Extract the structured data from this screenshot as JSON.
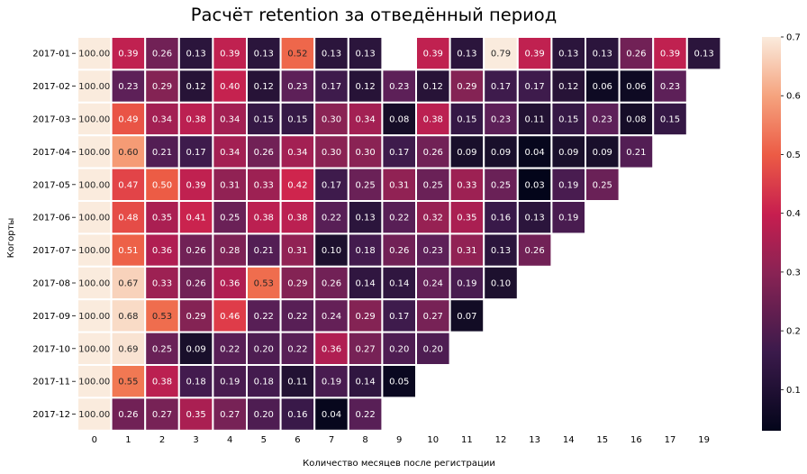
{
  "chart_data": {
    "type": "heatmap",
    "title": "Расчёт retention за отведённый период",
    "xlabel": "Количество месяцев после регистрации",
    "ylabel": "Когорты",
    "x_labels": [
      "0",
      "1",
      "2",
      "3",
      "4",
      "5",
      "6",
      "7",
      "8",
      "9",
      "10",
      "11",
      "12",
      "13",
      "14",
      "15",
      "16",
      "17",
      "19"
    ],
    "y_labels": [
      "2017-01",
      "2017-02",
      "2017-03",
      "2017-04",
      "2017-05",
      "2017-06",
      "2017-07",
      "2017-08",
      "2017-09",
      "2017-10",
      "2017-11",
      "2017-12"
    ],
    "values": [
      [
        100.0,
        0.39,
        0.26,
        0.13,
        0.39,
        0.13,
        0.52,
        0.13,
        0.13,
        null,
        0.39,
        0.13,
        0.79,
        0.39,
        0.13,
        0.13,
        0.26,
        0.39,
        0.13
      ],
      [
        100.0,
        0.23,
        0.29,
        0.12,
        0.4,
        0.12,
        0.23,
        0.17,
        0.12,
        0.23,
        0.12,
        0.29,
        0.17,
        0.17,
        0.12,
        0.06,
        0.06,
        0.23,
        null
      ],
      [
        100.0,
        0.49,
        0.34,
        0.38,
        0.34,
        0.15,
        0.15,
        0.3,
        0.34,
        0.08,
        0.38,
        0.15,
        0.23,
        0.11,
        0.15,
        0.23,
        0.08,
        0.15,
        null
      ],
      [
        100.0,
        0.6,
        0.21,
        0.17,
        0.34,
        0.26,
        0.34,
        0.3,
        0.3,
        0.17,
        0.26,
        0.09,
        0.09,
        0.04,
        0.09,
        0.09,
        0.21,
        null,
        null
      ],
      [
        100.0,
        0.47,
        0.5,
        0.39,
        0.31,
        0.33,
        0.42,
        0.17,
        0.25,
        0.31,
        0.25,
        0.33,
        0.25,
        0.03,
        0.19,
        0.25,
        null,
        null,
        null
      ],
      [
        100.0,
        0.48,
        0.35,
        0.41,
        0.25,
        0.38,
        0.38,
        0.22,
        0.13,
        0.22,
        0.32,
        0.35,
        0.16,
        0.13,
        0.19,
        null,
        null,
        null,
        null
      ],
      [
        100.0,
        0.51,
        0.36,
        0.26,
        0.28,
        0.21,
        0.31,
        0.1,
        0.18,
        0.26,
        0.23,
        0.31,
        0.13,
        0.26,
        null,
        null,
        null,
        null,
        null
      ],
      [
        100.0,
        0.67,
        0.33,
        0.26,
        0.36,
        0.53,
        0.29,
        0.26,
        0.14,
        0.14,
        0.24,
        0.19,
        0.1,
        null,
        null,
        null,
        null,
        null,
        null
      ],
      [
        100.0,
        0.68,
        0.53,
        0.29,
        0.46,
        0.22,
        0.22,
        0.24,
        0.29,
        0.17,
        0.27,
        0.07,
        null,
        null,
        null,
        null,
        null,
        null,
        null
      ],
      [
        100.0,
        0.69,
        0.25,
        0.09,
        0.22,
        0.2,
        0.22,
        0.36,
        0.27,
        0.2,
        0.2,
        null,
        null,
        null,
        null,
        null,
        null,
        null,
        null
      ],
      [
        100.0,
        0.55,
        0.38,
        0.18,
        0.19,
        0.18,
        0.11,
        0.19,
        0.14,
        0.05,
        null,
        null,
        null,
        null,
        null,
        null,
        null,
        null,
        null
      ],
      [
        100.0,
        0.26,
        0.27,
        0.35,
        0.27,
        0.2,
        0.16,
        0.04,
        0.22,
        null,
        null,
        null,
        null,
        null,
        null,
        null,
        null,
        null,
        null
      ]
    ],
    "vmin": 0.03,
    "vmax": 0.7,
    "colormap": "rocket",
    "colorbar_ticks": [
      0.1,
      0.2,
      0.3,
      0.4,
      0.5,
      0.6,
      0.7
    ],
    "cell_border_color": "#ffffff"
  }
}
